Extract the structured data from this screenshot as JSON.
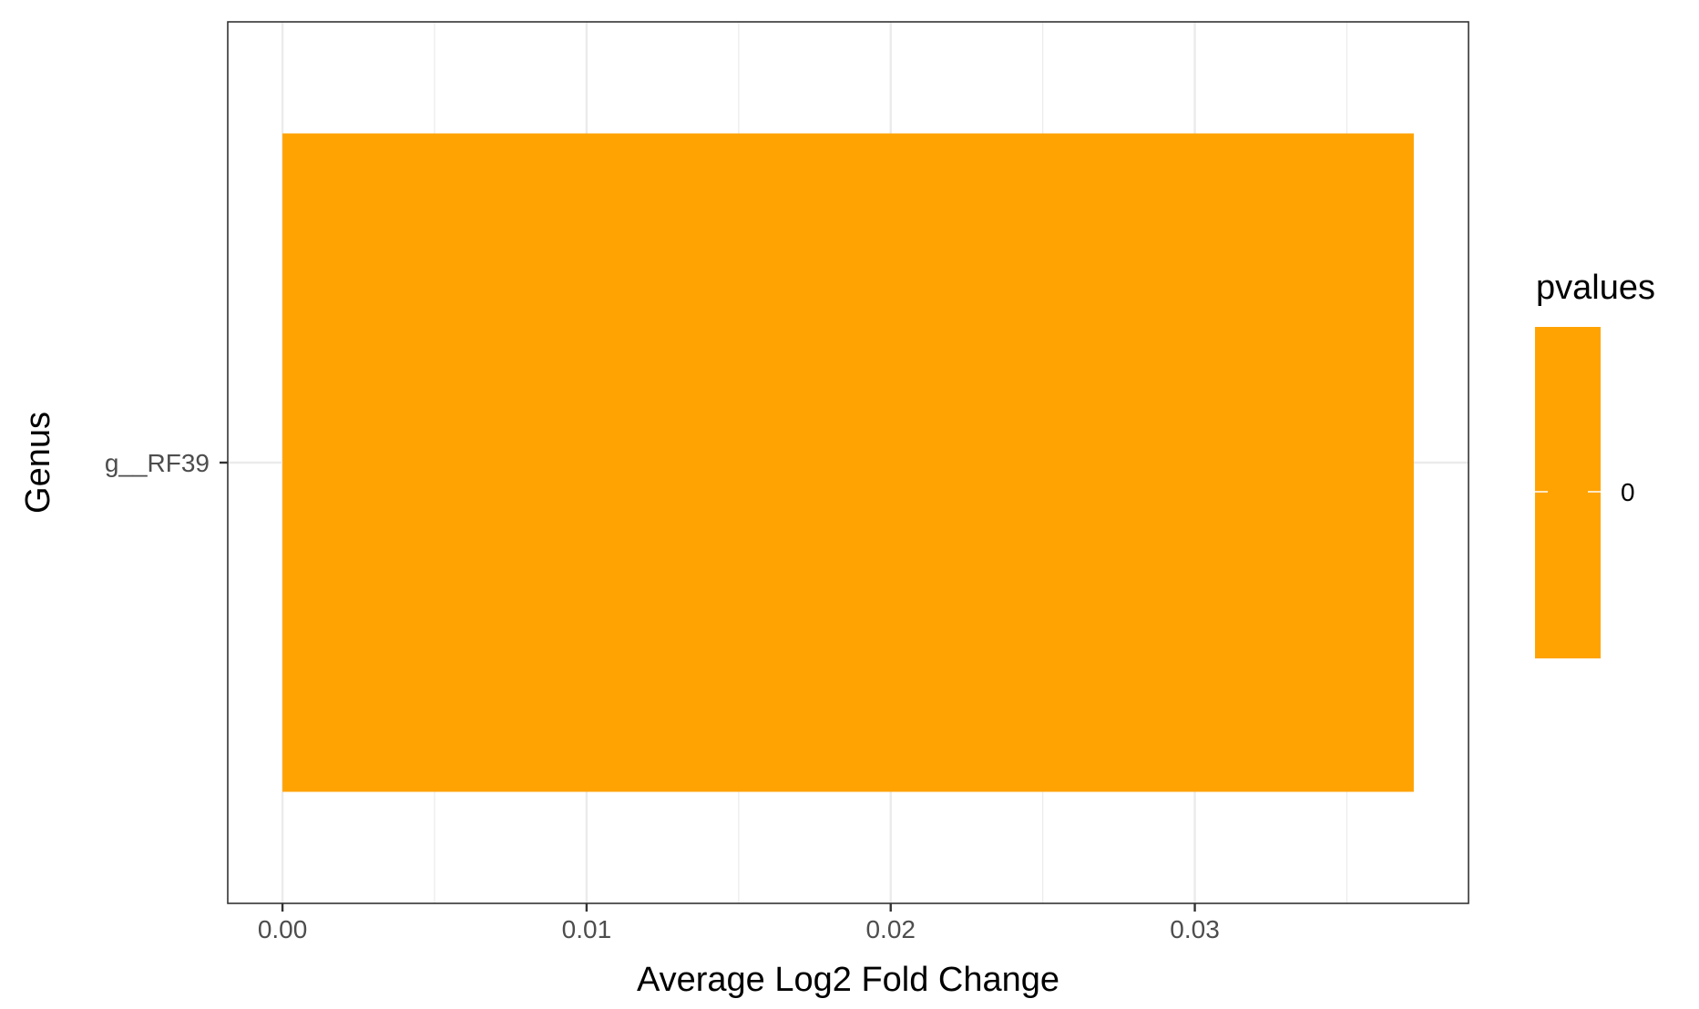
{
  "chart_data": {
    "type": "bar",
    "orientation": "horizontal",
    "categories": [
      "g__RF39"
    ],
    "values": [
      0.0372
    ],
    "xlabel": "Average Log2 Fold Change",
    "ylabel": "Genus",
    "xlim": [
      -0.0018,
      0.039
    ],
    "x_ticks": [
      0.0,
      0.01,
      0.02,
      0.03
    ],
    "x_tick_labels": [
      "0.00",
      "0.01",
      "0.02",
      "0.03"
    ],
    "grid": true,
    "bar_color": "#ffa303",
    "legend": {
      "title": "pvalues",
      "type": "colorbar",
      "position": "right",
      "labels": [
        "0"
      ]
    }
  }
}
